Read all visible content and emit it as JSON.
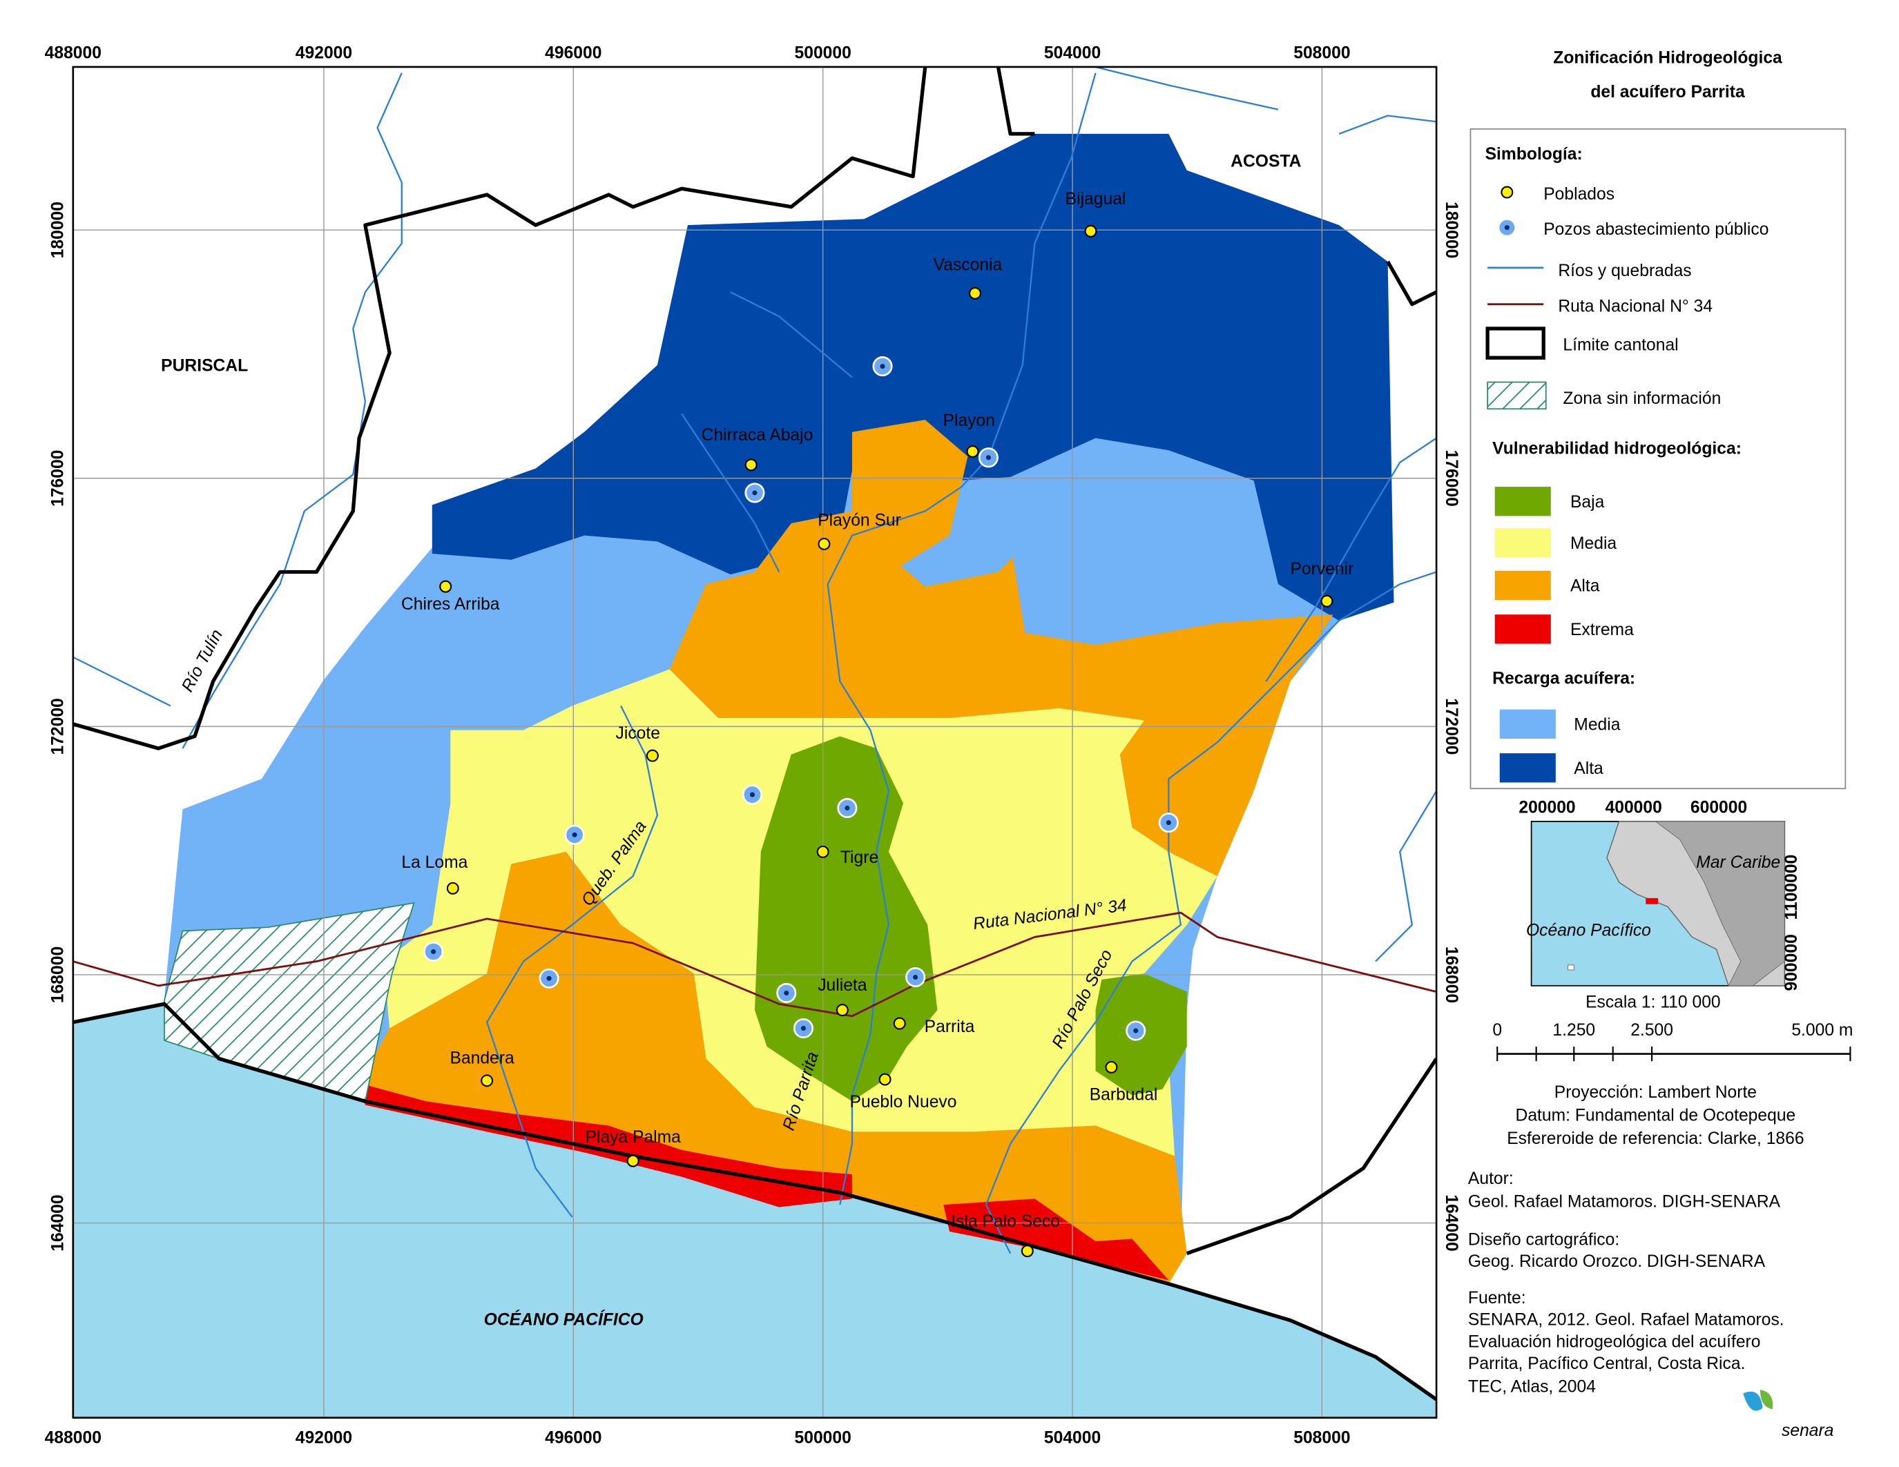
{
  "title": [
    "Zonificación Hidrogeológica",
    "del acuífero Parrita"
  ],
  "map": {
    "x_labels": [
      "488000",
      "492000",
      "496000",
      "500000",
      "504000",
      "508000"
    ],
    "y_labels": [
      "180000",
      "176000",
      "172000",
      "168000",
      "164000"
    ],
    "neighbors": [
      "PURISCAL",
      "ACOSTA"
    ],
    "ocean": "OCÉANO PACÍFICO",
    "rivers": [
      "Río Tulín",
      "Queb. Palma",
      "Río Parrita",
      "Río Palo Seco"
    ],
    "road": "Ruta Nacional N° 34",
    "towns": [
      "Bijagual",
      "Vasconia",
      "Chirraca Abajo",
      "Playon",
      "Playón Sur",
      "Chires Arriba",
      "Porvenir",
      "Jicote",
      "Tigre",
      "La Loma",
      "Julieta",
      "Parrita",
      "Pueblo Nuevo",
      "Bandera",
      "Barbudal",
      "Playa Palma",
      "Isla Palo Seco"
    ]
  },
  "legend": {
    "title": "Simbología:",
    "symbols": [
      "Poblados",
      "Pozos abastecimiento público",
      "Ríos y quebradas",
      "Ruta Nacional N° 34",
      "Límite cantonal",
      "Zona sin información"
    ],
    "vulnerability": {
      "title": "Vulnerabilidad hidrogeológica:",
      "classes": [
        "Baja",
        "Media",
        "Alta",
        "Extrema"
      ]
    },
    "recharge": {
      "title": "Recarga acuífera:",
      "classes": [
        "Media",
        "Alta"
      ]
    }
  },
  "inset": {
    "x_labels": [
      "200000",
      "400000",
      "600000"
    ],
    "y_labels": [
      "1100000",
      "900000"
    ],
    "sea": "Mar Caribe",
    "ocean": "Océano Pacífico"
  },
  "scale": {
    "title": "Escala 1: 110 000",
    "labels": [
      "0",
      "1.250",
      "2.500",
      "5.000 m"
    ]
  },
  "projection": [
    "Proyección: Lambert Norte",
    "Datum: Fundamental de Ocotepeque",
    "Esfereroide de referencia: Clarke, 1866"
  ],
  "author": {
    "heading": "Autor:",
    "text": "Geol. Rafael Matamoros. DIGH-SENARA"
  },
  "design": {
    "heading": "Diseño cartográfico:",
    "text": "Geog. Ricardo Orozco. DIGH-SENARA"
  },
  "source": {
    "heading": "Fuente:",
    "lines": [
      "SENARA, 2012. Geol. Rafael Matamoros.",
      "Evaluación hidrogeológica del acuífero",
      "Parrita, Pacífico Central, Costa Rica.",
      "TEC, Atlas, 2004"
    ]
  },
  "logo": "senara"
}
